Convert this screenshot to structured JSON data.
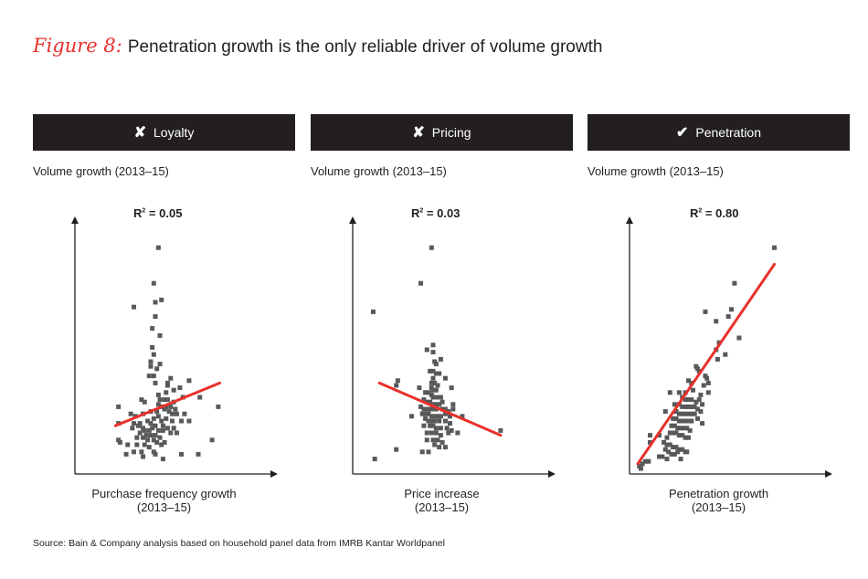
{
  "title": {
    "prefix": "Figure 8:",
    "text": "Penetration growth is the only reliable driver of volume growth"
  },
  "source": "Source: Bain & Company analysis based on household panel data from IMRB Kantar Worldpanel",
  "colors": {
    "header_bg": "#231f20",
    "points": "#58595b",
    "trendline": "#e8312b",
    "accent": "#e8312b"
  },
  "chart_data": [
    {
      "type": "scatter",
      "header": "Loyalty",
      "header_icon": "cross-icon",
      "header_mark": "✘",
      "ylabel": "Volume growth (2013–15)",
      "xlabel": "Purchase frequency growth",
      "xlabel_sub": "(2013–15)",
      "r2_label": "R",
      "r2_value": "= 0.05",
      "axis_units": "normalized 0-100, no tick labels shown",
      "xlim": [
        0,
        100
      ],
      "ylim": [
        0,
        100
      ],
      "grid": false,
      "trendline": [
        [
          24,
          18
        ],
        [
          92,
          36
        ]
      ],
      "points": [
        [
          52,
          93
        ],
        [
          49,
          78
        ],
        [
          50,
          70
        ],
        [
          54,
          71
        ],
        [
          36,
          68
        ],
        [
          50,
          64
        ],
        [
          48,
          59
        ],
        [
          53,
          56
        ],
        [
          48,
          51
        ],
        [
          49,
          48
        ],
        [
          47,
          45
        ],
        [
          53,
          44
        ],
        [
          47,
          43
        ],
        [
          51,
          42
        ],
        [
          46,
          39
        ],
        [
          49,
          39
        ],
        [
          60,
          38
        ],
        [
          72,
          37
        ],
        [
          50,
          36
        ],
        [
          58,
          35
        ],
        [
          58,
          36
        ],
        [
          66,
          34
        ],
        [
          62,
          33
        ],
        [
          57,
          32
        ],
        [
          52,
          31
        ],
        [
          68,
          30
        ],
        [
          79,
          30
        ],
        [
          41,
          29
        ],
        [
          43,
          28
        ],
        [
          53,
          29
        ],
        [
          56,
          29
        ],
        [
          58,
          29
        ],
        [
          62,
          28
        ],
        [
          26,
          26
        ],
        [
          52,
          27
        ],
        [
          54,
          26
        ],
        [
          57,
          26
        ],
        [
          59,
          24
        ],
        [
          60,
          26
        ],
        [
          63,
          25
        ],
        [
          64,
          23
        ],
        [
          34,
          23
        ],
        [
          47,
          24
        ],
        [
          51,
          24
        ],
        [
          56,
          25
        ],
        [
          61,
          23
        ],
        [
          91,
          26
        ],
        [
          37,
          22
        ],
        [
          42,
          23
        ],
        [
          49,
          21
        ],
        [
          52,
          22
        ],
        [
          54,
          20
        ],
        [
          57,
          21
        ],
        [
          61,
          20
        ],
        [
          69,
          23
        ],
        [
          67,
          20
        ],
        [
          72,
          20
        ],
        [
          26,
          19
        ],
        [
          36,
          19
        ],
        [
          40,
          19
        ],
        [
          45,
          20
        ],
        [
          47,
          19
        ],
        [
          50,
          18
        ],
        [
          55,
          18
        ],
        [
          58,
          17
        ],
        [
          62,
          17
        ],
        [
          35,
          17
        ],
        [
          39,
          18
        ],
        [
          42,
          17
        ],
        [
          43,
          16
        ],
        [
          46,
          16
        ],
        [
          48,
          17
        ],
        [
          52,
          16
        ],
        [
          55,
          16
        ],
        [
          60,
          15
        ],
        [
          40,
          15
        ],
        [
          44,
          14
        ],
        [
          47,
          14
        ],
        [
          50,
          14
        ],
        [
          53,
          13
        ],
        [
          64,
          15
        ],
        [
          38,
          13
        ],
        [
          42,
          13
        ],
        [
          45,
          12
        ],
        [
          49,
          12
        ],
        [
          51,
          11
        ],
        [
          56,
          11
        ],
        [
          26,
          12
        ],
        [
          27,
          11
        ],
        [
          32,
          10
        ],
        [
          38,
          10
        ],
        [
          43,
          10
        ],
        [
          46,
          9
        ],
        [
          54,
          10
        ],
        [
          87,
          12
        ],
        [
          36,
          7
        ],
        [
          41,
          7
        ],
        [
          49,
          7
        ],
        [
          50,
          6
        ],
        [
          31,
          6
        ],
        [
          42,
          5
        ],
        [
          55,
          4
        ],
        [
          67,
          6
        ],
        [
          78,
          6
        ]
      ]
    },
    {
      "type": "scatter",
      "header": "Pricing",
      "header_icon": "cross-icon",
      "header_mark": "✘",
      "ylabel": "Volume growth (2013–15)",
      "xlabel": "Price increase",
      "xlabel_sub": "(2013–15)",
      "r2_label": "R",
      "r2_value": "= 0.03",
      "axis_units": "normalized 0-100, no tick labels shown",
      "xlim": [
        0,
        100
      ],
      "ylim": [
        0,
        100
      ],
      "grid": false,
      "trendline": [
        [
          15,
          36
        ],
        [
          94,
          14
        ]
      ],
      "points": [
        [
          49,
          93
        ],
        [
          42,
          78
        ],
        [
          11,
          66
        ],
        [
          50,
          52
        ],
        [
          46,
          50
        ],
        [
          50,
          49
        ],
        [
          55,
          46
        ],
        [
          51,
          45
        ],
        [
          52,
          44
        ],
        [
          48,
          41
        ],
        [
          50,
          41
        ],
        [
          52,
          40
        ],
        [
          54,
          40
        ],
        [
          50,
          38
        ],
        [
          58,
          38
        ],
        [
          27,
          37
        ],
        [
          26,
          35
        ],
        [
          49,
          36
        ],
        [
          51,
          36
        ],
        [
          53,
          35
        ],
        [
          49,
          34
        ],
        [
          50,
          33
        ],
        [
          52,
          33
        ],
        [
          41,
          34
        ],
        [
          62,
          34
        ],
        [
          45,
          32
        ],
        [
          47,
          32
        ],
        [
          49,
          31
        ],
        [
          50,
          30
        ],
        [
          51,
          30
        ],
        [
          53,
          30
        ],
        [
          55,
          30
        ],
        [
          44,
          29
        ],
        [
          46,
          28
        ],
        [
          48,
          28
        ],
        [
          50,
          27
        ],
        [
          52,
          27
        ],
        [
          54,
          27
        ],
        [
          56,
          28
        ],
        [
          63,
          27
        ],
        [
          42,
          26
        ],
        [
          44,
          25
        ],
        [
          46,
          25
        ],
        [
          48,
          25
        ],
        [
          50,
          25
        ],
        [
          52,
          25
        ],
        [
          56,
          25
        ],
        [
          58,
          25
        ],
        [
          60,
          24
        ],
        [
          63,
          25
        ],
        [
          43,
          23
        ],
        [
          45,
          23
        ],
        [
          47,
          23
        ],
        [
          49,
          22
        ],
        [
          51,
          22
        ],
        [
          53,
          22
        ],
        [
          55,
          22
        ],
        [
          58,
          23
        ],
        [
          61,
          22
        ],
        [
          69,
          22
        ],
        [
          36,
          22
        ],
        [
          45,
          21
        ],
        [
          47,
          20
        ],
        [
          49,
          20
        ],
        [
          51,
          20
        ],
        [
          54,
          20
        ],
        [
          58,
          20
        ],
        [
          61,
          19
        ],
        [
          44,
          18
        ],
        [
          48,
          18
        ],
        [
          50,
          18
        ],
        [
          52,
          17
        ],
        [
          55,
          17
        ],
        [
          59,
          17
        ],
        [
          62,
          16
        ],
        [
          46,
          15
        ],
        [
          49,
          15
        ],
        [
          52,
          15
        ],
        [
          55,
          14
        ],
        [
          60,
          15
        ],
        [
          66,
          15
        ],
        [
          94,
          16
        ],
        [
          46,
          12
        ],
        [
          50,
          12
        ],
        [
          53,
          12
        ],
        [
          56,
          11
        ],
        [
          51,
          10
        ],
        [
          54,
          9
        ],
        [
          58,
          9
        ],
        [
          26,
          8
        ],
        [
          43,
          7
        ],
        [
          47,
          7
        ],
        [
          12,
          4
        ]
      ]
    },
    {
      "type": "scatter",
      "header": "Penetration",
      "header_icon": "check-icon",
      "header_mark": "✔",
      "ylabel": "Volume growth (2013–15)",
      "xlabel": "Penetration growth",
      "xlabel_sub": "(2013–15)",
      "r2_label": "R",
      "r2_value": "= 0.80",
      "axis_units": "normalized 0-100, no tick labels shown",
      "xlim": [
        0,
        100
      ],
      "ylim": [
        0,
        100
      ],
      "grid": false,
      "trendline": [
        [
          3,
          2
        ],
        [
          92,
          86
        ]
      ],
      "points": [
        [
          92,
          93
        ],
        [
          66,
          78
        ],
        [
          64,
          67
        ],
        [
          47,
          66
        ],
        [
          62,
          64
        ],
        [
          54,
          62
        ],
        [
          69,
          55
        ],
        [
          56,
          53
        ],
        [
          54,
          50
        ],
        [
          60,
          48
        ],
        [
          55,
          46
        ],
        [
          41,
          43
        ],
        [
          42,
          42
        ],
        [
          43,
          41
        ],
        [
          47,
          39
        ],
        [
          48,
          38
        ],
        [
          36,
          37
        ],
        [
          38,
          36
        ],
        [
          46,
          35
        ],
        [
          49,
          36
        ],
        [
          24,
          32
        ],
        [
          30,
          32
        ],
        [
          34,
          32
        ],
        [
          39,
          33
        ],
        [
          44,
          31
        ],
        [
          49,
          32
        ],
        [
          32,
          30
        ],
        [
          34,
          29
        ],
        [
          36,
          29
        ],
        [
          38,
          29
        ],
        [
          41,
          28
        ],
        [
          43,
          29
        ],
        [
          45,
          27
        ],
        [
          27,
          27
        ],
        [
          30,
          27
        ],
        [
          32,
          26
        ],
        [
          34,
          26
        ],
        [
          36,
          26
        ],
        [
          38,
          26
        ],
        [
          40,
          26
        ],
        [
          42,
          25
        ],
        [
          21,
          24
        ],
        [
          28,
          24
        ],
        [
          30,
          23
        ],
        [
          32,
          23
        ],
        [
          34,
          23
        ],
        [
          36,
          23
        ],
        [
          38,
          23
        ],
        [
          40,
          23
        ],
        [
          44,
          24
        ],
        [
          26,
          21
        ],
        [
          28,
          21
        ],
        [
          30,
          20
        ],
        [
          32,
          20
        ],
        [
          34,
          20
        ],
        [
          36,
          20
        ],
        [
          38,
          20
        ],
        [
          42,
          21
        ],
        [
          45,
          19
        ],
        [
          25,
          18
        ],
        [
          27,
          18
        ],
        [
          29,
          17
        ],
        [
          31,
          17
        ],
        [
          33,
          17
        ],
        [
          35,
          17
        ],
        [
          37,
          16
        ],
        [
          24,
          15
        ],
        [
          26,
          15
        ],
        [
          28,
          15
        ],
        [
          30,
          14
        ],
        [
          32,
          14
        ],
        [
          34,
          13
        ],
        [
          36,
          13
        ],
        [
          11,
          14
        ],
        [
          17,
          14
        ],
        [
          22,
          13
        ],
        [
          11,
          11
        ],
        [
          20,
          11
        ],
        [
          22,
          10
        ],
        [
          24,
          10
        ],
        [
          26,
          9
        ],
        [
          28,
          9
        ],
        [
          30,
          8
        ],
        [
          32,
          8
        ],
        [
          34,
          7
        ],
        [
          21,
          8
        ],
        [
          23,
          7
        ],
        [
          25,
          6
        ],
        [
          27,
          6
        ],
        [
          29,
          7
        ],
        [
          35,
          7
        ],
        [
          17,
          5
        ],
        [
          19,
          5
        ],
        [
          22,
          4
        ],
        [
          31,
          4
        ],
        [
          8,
          3
        ],
        [
          10,
          3
        ],
        [
          6,
          2
        ],
        [
          4,
          1
        ],
        [
          5,
          0
        ]
      ]
    }
  ]
}
